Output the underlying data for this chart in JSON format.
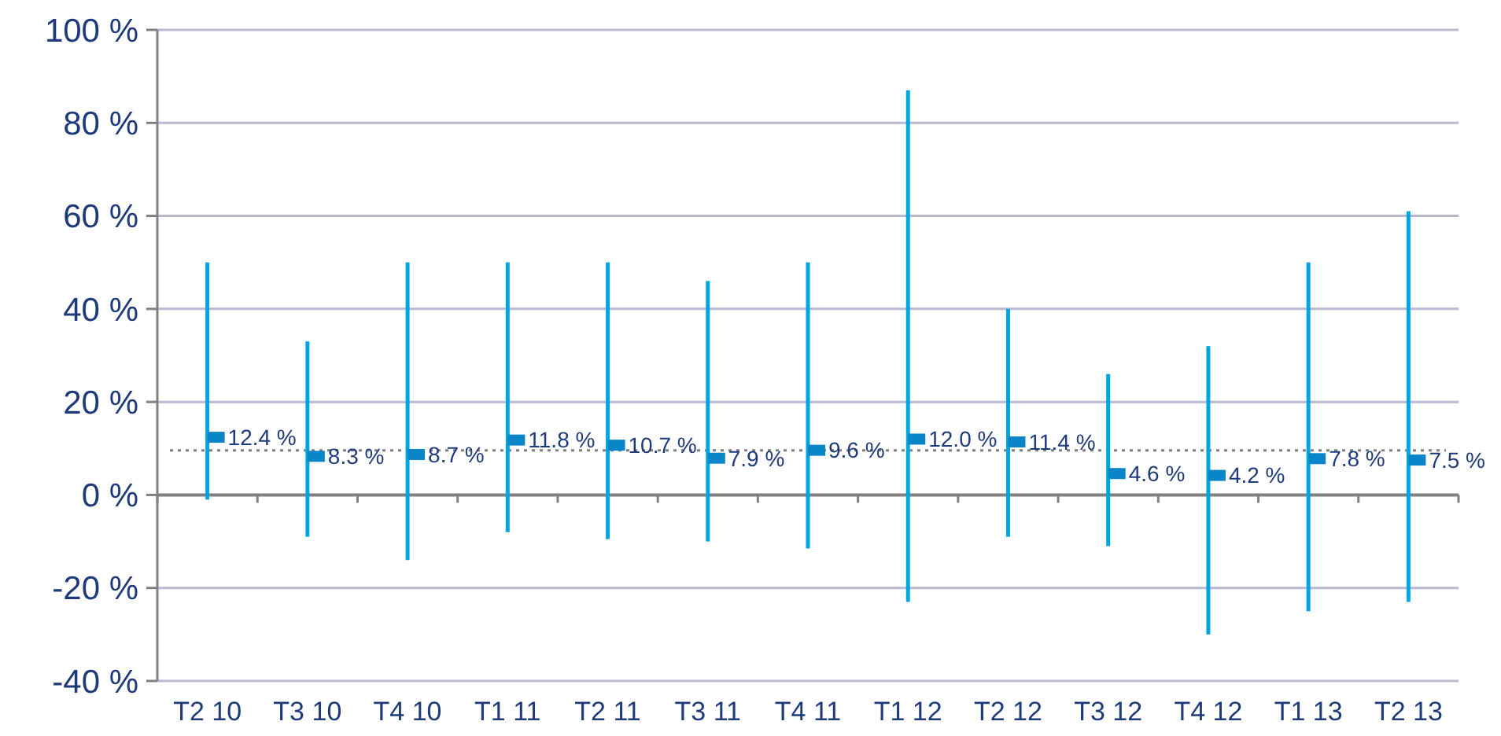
{
  "chart_data": {
    "type": "bar",
    "categories": [
      "T2 10",
      "T3 10",
      "T4 10",
      "T1 11",
      "T2 11",
      "T3 11",
      "T4 11",
      "T1 12",
      "T2 12",
      "T3 12",
      "T4 12",
      "T1 13",
      "T2 13"
    ],
    "series": [
      {
        "color": "#00a6e2",
        "base": [
          -1,
          -9,
          -14,
          -8,
          -9.5,
          -10,
          -11.5,
          -23,
          -9,
          -11,
          -30,
          -25,
          -23
        ],
        "values": [
          51,
          42,
          64,
          58,
          59.5,
          56,
          61.5,
          110,
          49,
          37,
          62,
          75,
          84
        ]
      },
      {
        "type": "scatter",
        "color": "#0a85c7",
        "marker": "square",
        "values": [
          12.4,
          8.3,
          8.7,
          11.8,
          10.7,
          7.9,
          9.6,
          12.0,
          11.4,
          4.6,
          4.2,
          7.8,
          7.5
        ],
        "value_labels": [
          "12.4 %",
          "8.3 %",
          "8.7 %",
          "11.8 %",
          "10.7 %",
          "7.9 %",
          "9.6 %",
          "12.0 %",
          "11.4 %",
          "4.6 %",
          "4.2 %",
          "7.8 %",
          "7.5 %"
        ]
      }
    ],
    "ylim": [
      -40,
      100
    ],
    "yticks": [
      {
        "value": -40,
        "label": "-40 %"
      },
      {
        "value": -20,
        "label": "-20 %"
      },
      {
        "value": 0,
        "label": "0 %"
      },
      {
        "value": 20,
        "label": "20 %"
      },
      {
        "value": 40,
        "label": "40 %"
      },
      {
        "value": 60,
        "label": "60 %"
      },
      {
        "value": 80,
        "label": "80 %"
      },
      {
        "value": 100,
        "label": "100 %"
      }
    ],
    "grid": "y",
    "ref_lines": [
      {
        "axis": "y",
        "value": 9.6,
        "color": "#808080",
        "line_style": "dotted"
      }
    ]
  }
}
